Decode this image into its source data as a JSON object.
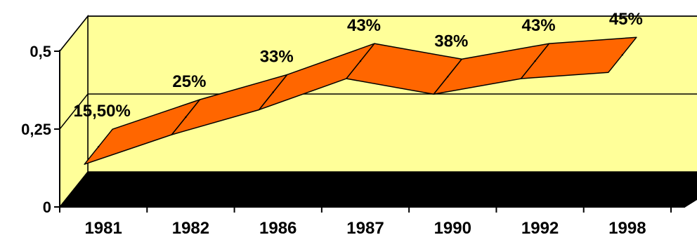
{
  "chart_data": {
    "type": "line",
    "title": "",
    "xlabel": "",
    "ylabel": "",
    "categories": [
      "1981",
      "1982",
      "1986",
      "1987",
      "1990",
      "1992",
      "1998"
    ],
    "values": [
      0.155,
      0.25,
      0.33,
      0.43,
      0.38,
      0.43,
      0.45
    ],
    "data_labels": [
      "15,50%",
      "25%",
      "33%",
      "43%",
      "38%",
      "43%",
      "45%"
    ],
    "y_ticks": [
      {
        "value": 0,
        "label": "0"
      },
      {
        "value": 0.25,
        "label": "0,25"
      },
      {
        "value": 0.5,
        "label": "0,5"
      }
    ],
    "ylim": [
      0,
      0.5
    ],
    "grid": true,
    "legend": "none",
    "style": "3d-ribbon",
    "colors": {
      "wall": "#ffff99",
      "floor": "#000000",
      "ribbon_fill": "#ff6600",
      "ribbon_stroke": "#000000"
    }
  }
}
